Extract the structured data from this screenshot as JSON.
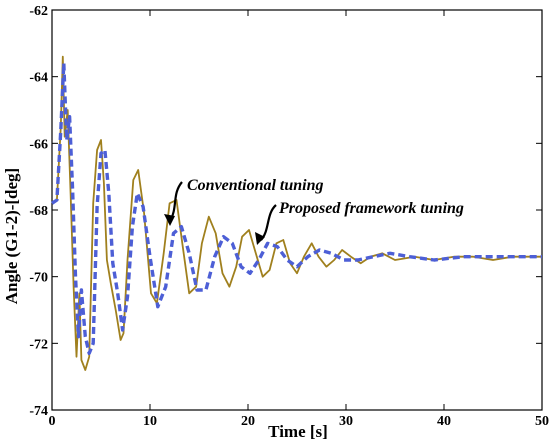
{
  "chart_data": {
    "type": "line",
    "title": "",
    "xlabel": "Time [s]",
    "ylabel": "Angle (G1-2)-[deg]",
    "xlim": [
      0,
      50
    ],
    "ylim": [
      -74,
      -62
    ],
    "x_ticks": [
      "0",
      "10",
      "20",
      "30",
      "40",
      "50"
    ],
    "y_ticks": [
      "-62",
      "-64",
      "-66",
      "-68",
      "-70",
      "-72",
      "-74"
    ],
    "grid": false,
    "legend": "none",
    "annotations": [
      {
        "text": "Conventional tuning",
        "series": 0
      },
      {
        "text": "Proposed framework tuning",
        "series": 1
      }
    ],
    "series": [
      {
        "color": "#a0801e",
        "style": "solid",
        "x": [
          0,
          0.5,
          0.9,
          1.1,
          1.3,
          1.6,
          1.9,
          2.2,
          2.5,
          2.8,
          3.0,
          3.4,
          3.8,
          4.2,
          4.6,
          5.0,
          5.3,
          5.6,
          6.0,
          6.5,
          7.0,
          7.3,
          7.7,
          8.3,
          8.8,
          9.4,
          10.1,
          10.7,
          11.4,
          12.0,
          12.7,
          13.3,
          14.0,
          14.7,
          15.3,
          16.0,
          16.7,
          17.4,
          18.1,
          18.8,
          19.4,
          20.1,
          20.8,
          21.5,
          22.2,
          22.9,
          23.6,
          24.3,
          25.0,
          25.7,
          26.5,
          27.2,
          28.0,
          28.8,
          29.6,
          30.5,
          31.5,
          32.5,
          33.7,
          35,
          37,
          39,
          41,
          43,
          45,
          47,
          50
        ],
        "values": [
          -67.8,
          -67.7,
          -65.5,
          -63.4,
          -65.8,
          -65.0,
          -67.5,
          -70.3,
          -72.4,
          -70.5,
          -72.5,
          -72.8,
          -72.4,
          -67.8,
          -66.2,
          -65.9,
          -67.2,
          -69.5,
          -70.2,
          -71.0,
          -71.9,
          -71.7,
          -69.5,
          -67.1,
          -66.8,
          -68.1,
          -70.5,
          -70.8,
          -69.3,
          -67.8,
          -67.7,
          -69.0,
          -70.5,
          -70.3,
          -69.0,
          -68.2,
          -68.7,
          -69.9,
          -70.3,
          -69.7,
          -68.8,
          -68.6,
          -69.3,
          -70.0,
          -69.8,
          -69.0,
          -68.9,
          -69.6,
          -69.9,
          -69.4,
          -69.0,
          -69.4,
          -69.7,
          -69.5,
          -69.2,
          -69.4,
          -69.6,
          -69.4,
          -69.3,
          -69.5,
          -69.4,
          -69.5,
          -69.4,
          -69.4,
          -69.5,
          -69.4,
          -69.4
        ]
      },
      {
        "color": "#4d5fd6",
        "style": "dashed",
        "x": [
          0,
          0.5,
          0.9,
          1.2,
          1.5,
          1.8,
          2.1,
          2.4,
          2.7,
          3.0,
          3.4,
          3.8,
          4.2,
          4.6,
          5.0,
          5.4,
          5.8,
          6.2,
          6.7,
          7.2,
          7.7,
          8.2,
          8.7,
          9.3,
          10.0,
          10.8,
          11.6,
          12.4,
          13.2,
          14.0,
          14.8,
          15.7,
          16.6,
          17.5,
          18.4,
          19.3,
          20.2,
          21.1,
          22.0,
          23.0,
          24.0,
          25.0,
          26.1,
          27.3,
          28.5,
          29.8,
          31.2,
          32.8,
          34.5,
          36.5,
          39,
          42,
          45,
          50
        ],
        "values": [
          -67.8,
          -67.7,
          -65.6,
          -63.6,
          -65.9,
          -65.2,
          -67.4,
          -70.0,
          -71.8,
          -70.4,
          -71.8,
          -72.3,
          -72.0,
          -67.9,
          -66.3,
          -66.2,
          -67.5,
          -69.6,
          -70.5,
          -71.6,
          -70.6,
          -68.5,
          -67.5,
          -67.9,
          -69.4,
          -70.9,
          -70.3,
          -68.7,
          -68.5,
          -69.3,
          -70.4,
          -70.4,
          -69.4,
          -68.8,
          -69.0,
          -69.7,
          -69.9,
          -69.5,
          -69.0,
          -69.1,
          -69.5,
          -69.7,
          -69.4,
          -69.2,
          -69.3,
          -69.5,
          -69.5,
          -69.4,
          -69.3,
          -69.4,
          -69.5,
          -69.4,
          -69.4,
          -69.4
        ]
      }
    ]
  }
}
